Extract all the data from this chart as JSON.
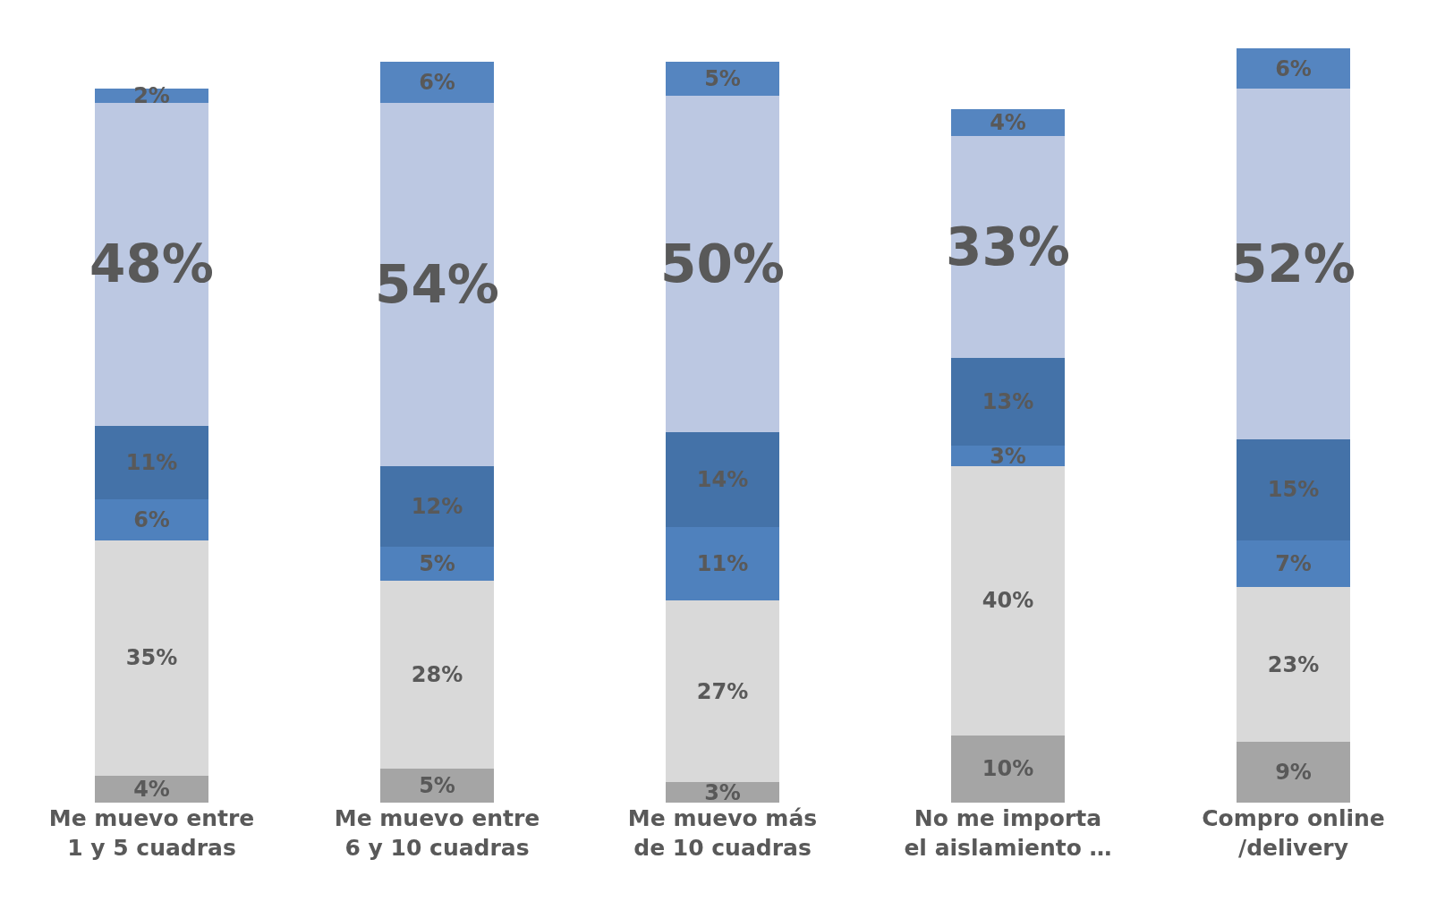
{
  "chart_data": {
    "type": "bar",
    "stacked": true,
    "categories": [
      "Me muevo entre 1 y 5 cuadras",
      "Me muevo entre 6 y 10 cuadras",
      "Me muevo más de 10 cuadras",
      "No me importa el aislamiento …",
      "Compro online /delivery"
    ],
    "series": [
      {
        "color": "#a5a5a5",
        "values": [
          4,
          5,
          3,
          10,
          9
        ],
        "value_labels": [
          "4%",
          "5%",
          "3%",
          "10%",
          "9%"
        ]
      },
      {
        "color": "#d9d9d9",
        "values": [
          35,
          28,
          27,
          40,
          23
        ],
        "value_labels": [
          "35%",
          "28%",
          "27%",
          "40%",
          "23%"
        ]
      },
      {
        "color": "#4f81bd",
        "values": [
          6,
          5,
          11,
          3,
          7
        ],
        "value_labels": [
          "6%",
          "5%",
          "11%",
          "3%",
          "7%"
        ]
      },
      {
        "color": "#4472a8",
        "values": [
          11,
          12,
          14,
          13,
          15
        ],
        "value_labels": [
          "11%",
          "12%",
          "14%",
          "13%",
          "15%"
        ]
      },
      {
        "color": "#bcc8e2",
        "values": [
          48,
          54,
          50,
          33,
          52
        ],
        "value_labels": [
          "48%",
          "54%",
          "50%",
          "33%",
          "52%"
        ]
      },
      {
        "color": "#5585c0",
        "values": [
          2,
          6,
          5,
          4,
          6
        ],
        "value_labels": [
          "2%",
          "6%",
          "5%",
          "4%",
          "6%"
        ]
      }
    ]
  }
}
